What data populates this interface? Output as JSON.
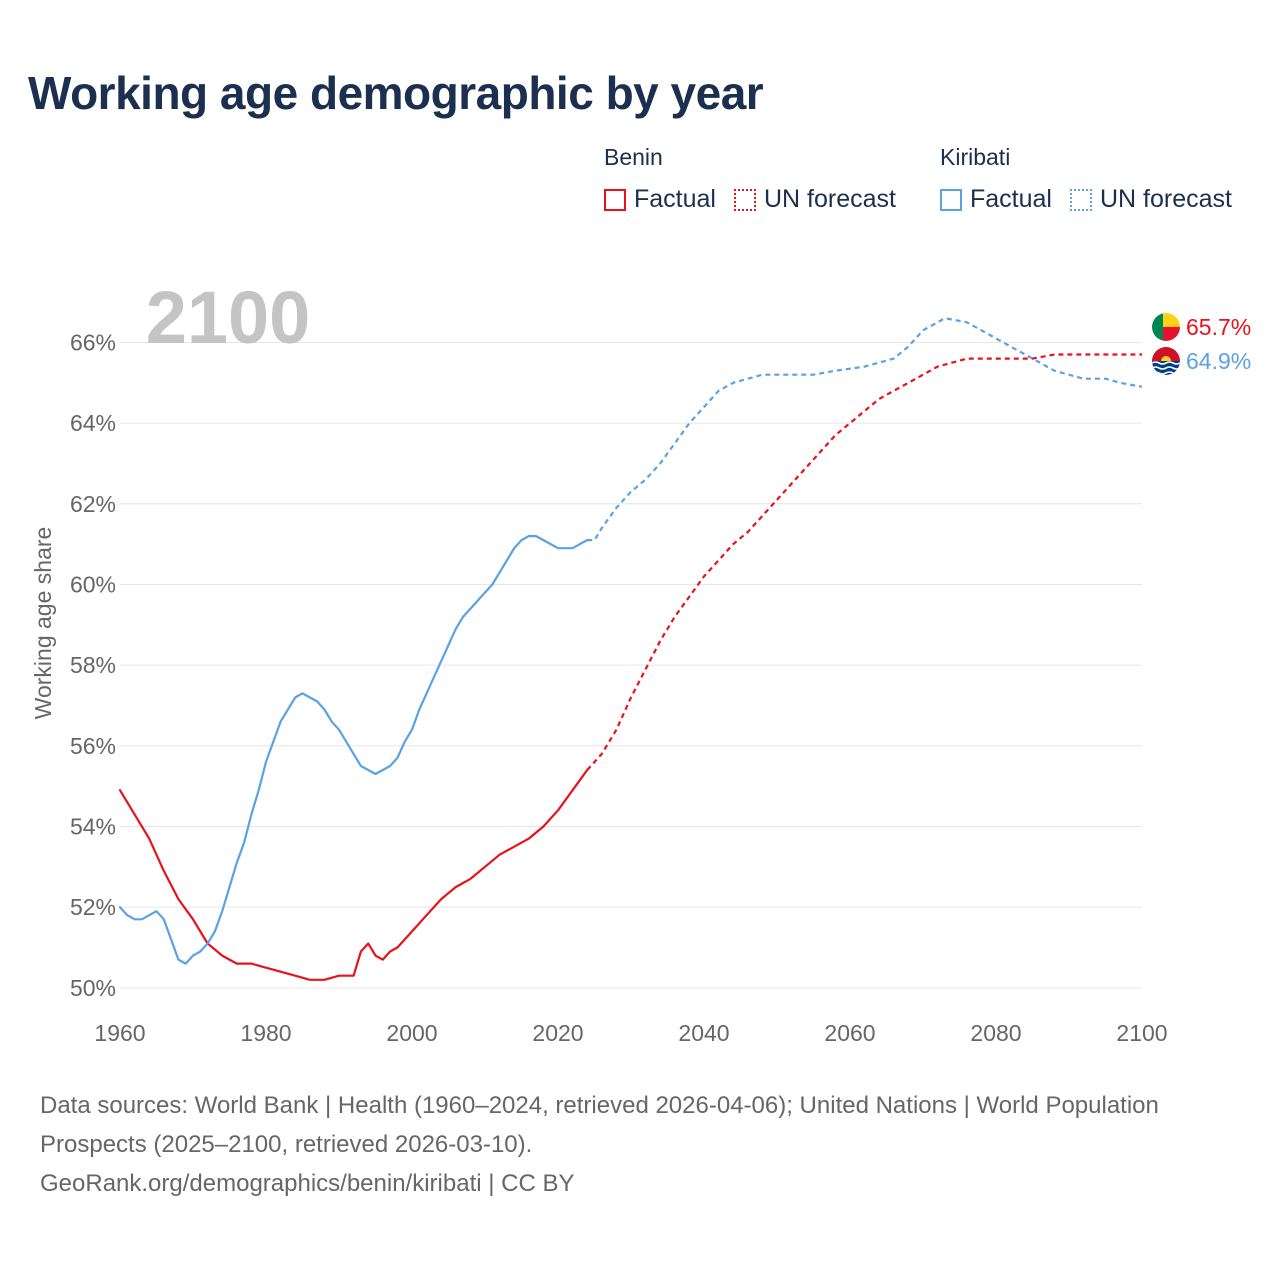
{
  "title": "Working age demographic by year",
  "legend": {
    "groups": [
      {
        "name": "Benin",
        "color": "#e8121c",
        "factual_label": "Factual",
        "forecast_label": "UN forecast"
      },
      {
        "name": "Kiribati",
        "color": "#5aa2e3",
        "factual_label": "Factual",
        "forecast_label": "UN forecast"
      }
    ]
  },
  "footer": {
    "line1": "Data sources: World Bank | Health (1960–2024, retrieved 2026-04-06); United Nations | World Population Prospects (2025–2100, retrieved 2026-03-10).",
    "line2": "GeoRank.org/demographics/benin/kiribati | CC BY"
  },
  "chart_data": {
    "type": "line",
    "title": "Working age demographic by year",
    "year_label": "2100",
    "ylabel": "Working age share",
    "xlabel": "",
    "xlim": [
      1960,
      2100
    ],
    "ylim": [
      49.5,
      67.3
    ],
    "x_ticks": [
      1960,
      1980,
      2000,
      2020,
      2040,
      2060,
      2080,
      2100
    ],
    "y_ticks": [
      50,
      52,
      54,
      56,
      58,
      60,
      62,
      64,
      66
    ],
    "y_tick_labels": [
      "50%",
      "52%",
      "54%",
      "56%",
      "58%",
      "60%",
      "62%",
      "64%",
      "66%"
    ],
    "grid": true,
    "factual_range": [
      1960,
      2024
    ],
    "forecast_range": [
      2024,
      2100
    ],
    "series": [
      {
        "name": "Benin",
        "color": "#e8121c",
        "end_label": "65.7%",
        "flag": "benin-flag-icon",
        "points": [
          [
            1960,
            54.9
          ],
          [
            1962,
            54.3
          ],
          [
            1964,
            53.7
          ],
          [
            1966,
            52.9
          ],
          [
            1968,
            52.2
          ],
          [
            1970,
            51.7
          ],
          [
            1972,
            51.1
          ],
          [
            1974,
            50.8
          ],
          [
            1976,
            50.6
          ],
          [
            1978,
            50.6
          ],
          [
            1980,
            50.5
          ],
          [
            1982,
            50.4
          ],
          [
            1984,
            50.3
          ],
          [
            1986,
            50.2
          ],
          [
            1988,
            50.2
          ],
          [
            1990,
            50.3
          ],
          [
            1992,
            50.3
          ],
          [
            1993,
            50.9
          ],
          [
            1994,
            51.1
          ],
          [
            1995,
            50.8
          ],
          [
            1996,
            50.7
          ],
          [
            1997,
            50.9
          ],
          [
            1998,
            51.0
          ],
          [
            2000,
            51.4
          ],
          [
            2002,
            51.8
          ],
          [
            2004,
            52.2
          ],
          [
            2006,
            52.5
          ],
          [
            2008,
            52.7
          ],
          [
            2010,
            53.0
          ],
          [
            2012,
            53.3
          ],
          [
            2014,
            53.5
          ],
          [
            2016,
            53.7
          ],
          [
            2018,
            54.0
          ],
          [
            2020,
            54.4
          ],
          [
            2022,
            54.9
          ],
          [
            2024,
            55.4
          ],
          [
            2026,
            55.8
          ],
          [
            2028,
            56.4
          ],
          [
            2030,
            57.2
          ],
          [
            2032,
            57.9
          ],
          [
            2034,
            58.6
          ],
          [
            2036,
            59.2
          ],
          [
            2038,
            59.7
          ],
          [
            2040,
            60.2
          ],
          [
            2042,
            60.6
          ],
          [
            2044,
            61.0
          ],
          [
            2046,
            61.3
          ],
          [
            2048,
            61.7
          ],
          [
            2050,
            62.1
          ],
          [
            2052,
            62.5
          ],
          [
            2054,
            62.9
          ],
          [
            2056,
            63.3
          ],
          [
            2058,
            63.7
          ],
          [
            2060,
            64.0
          ],
          [
            2062,
            64.3
          ],
          [
            2064,
            64.6
          ],
          [
            2066,
            64.8
          ],
          [
            2068,
            65.0
          ],
          [
            2070,
            65.2
          ],
          [
            2072,
            65.4
          ],
          [
            2074,
            65.5
          ],
          [
            2076,
            65.6
          ],
          [
            2078,
            65.6
          ],
          [
            2080,
            65.6
          ],
          [
            2085,
            65.6
          ],
          [
            2088,
            65.7
          ],
          [
            2092,
            65.7
          ],
          [
            2096,
            65.7
          ],
          [
            2100,
            65.7
          ]
        ]
      },
      {
        "name": "Kiribati",
        "color": "#5aa2e3",
        "end_label": "64.9%",
        "flag": "kiribati-flag-icon",
        "points": [
          [
            1960,
            52.0
          ],
          [
            1961,
            51.8
          ],
          [
            1962,
            51.7
          ],
          [
            1963,
            51.7
          ],
          [
            1964,
            51.8
          ],
          [
            1965,
            51.9
          ],
          [
            1966,
            51.7
          ],
          [
            1967,
            51.2
          ],
          [
            1968,
            50.7
          ],
          [
            1969,
            50.6
          ],
          [
            1970,
            50.8
          ],
          [
            1971,
            50.9
          ],
          [
            1972,
            51.1
          ],
          [
            1973,
            51.4
          ],
          [
            1974,
            51.9
          ],
          [
            1975,
            52.5
          ],
          [
            1976,
            53.1
          ],
          [
            1977,
            53.6
          ],
          [
            1978,
            54.3
          ],
          [
            1979,
            54.9
          ],
          [
            1980,
            55.6
          ],
          [
            1981,
            56.1
          ],
          [
            1982,
            56.6
          ],
          [
            1983,
            56.9
          ],
          [
            1984,
            57.2
          ],
          [
            1985,
            57.3
          ],
          [
            1986,
            57.2
          ],
          [
            1987,
            57.1
          ],
          [
            1988,
            56.9
          ],
          [
            1989,
            56.6
          ],
          [
            1990,
            56.4
          ],
          [
            1991,
            56.1
          ],
          [
            1992,
            55.8
          ],
          [
            1993,
            55.5
          ],
          [
            1994,
            55.4
          ],
          [
            1995,
            55.3
          ],
          [
            1996,
            55.4
          ],
          [
            1997,
            55.5
          ],
          [
            1998,
            55.7
          ],
          [
            1999,
            56.1
          ],
          [
            2000,
            56.4
          ],
          [
            2001,
            56.9
          ],
          [
            2002,
            57.3
          ],
          [
            2003,
            57.7
          ],
          [
            2004,
            58.1
          ],
          [
            2005,
            58.5
          ],
          [
            2006,
            58.9
          ],
          [
            2007,
            59.2
          ],
          [
            2008,
            59.4
          ],
          [
            2009,
            59.6
          ],
          [
            2010,
            59.8
          ],
          [
            2011,
            60.0
          ],
          [
            2012,
            60.3
          ],
          [
            2013,
            60.6
          ],
          [
            2014,
            60.9
          ],
          [
            2015,
            61.1
          ],
          [
            2016,
            61.2
          ],
          [
            2017,
            61.2
          ],
          [
            2018,
            61.1
          ],
          [
            2019,
            61.0
          ],
          [
            2020,
            60.9
          ],
          [
            2021,
            60.9
          ],
          [
            2022,
            60.9
          ],
          [
            2023,
            61.0
          ],
          [
            2024,
            61.1
          ],
          [
            2025,
            61.1
          ],
          [
            2026,
            61.4
          ],
          [
            2028,
            61.9
          ],
          [
            2030,
            62.3
          ],
          [
            2032,
            62.6
          ],
          [
            2034,
            63.0
          ],
          [
            2036,
            63.5
          ],
          [
            2038,
            64.0
          ],
          [
            2040,
            64.4
          ],
          [
            2042,
            64.8
          ],
          [
            2044,
            65.0
          ],
          [
            2046,
            65.1
          ],
          [
            2048,
            65.2
          ],
          [
            2050,
            65.2
          ],
          [
            2055,
            65.2
          ],
          [
            2058,
            65.3
          ],
          [
            2062,
            65.4
          ],
          [
            2066,
            65.6
          ],
          [
            2068,
            65.9
          ],
          [
            2070,
            66.3
          ],
          [
            2072,
            66.5
          ],
          [
            2073,
            66.6
          ],
          [
            2076,
            66.5
          ],
          [
            2078,
            66.3
          ],
          [
            2080,
            66.1
          ],
          [
            2082,
            65.9
          ],
          [
            2084,
            65.7
          ],
          [
            2086,
            65.5
          ],
          [
            2088,
            65.3
          ],
          [
            2090,
            65.2
          ],
          [
            2092,
            65.1
          ],
          [
            2095,
            65.1
          ],
          [
            2097,
            65.0
          ],
          [
            2100,
            64.9
          ]
        ]
      }
    ]
  }
}
